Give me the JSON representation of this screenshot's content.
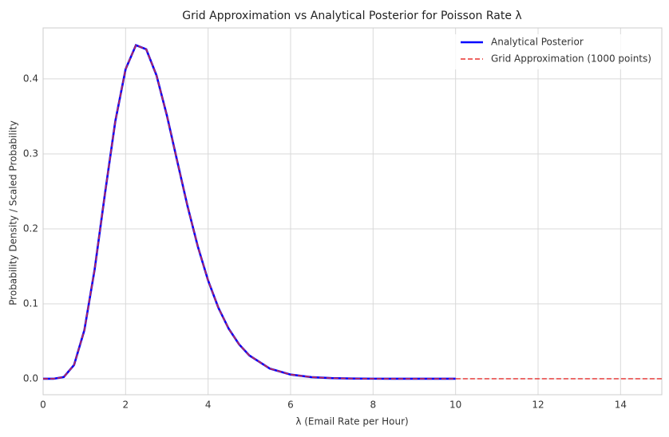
{
  "chart_data": {
    "type": "line",
    "title": "Grid Approximation vs Analytical Posterior for Poisson Rate λ",
    "xlabel": "λ (Email Rate per Hour)",
    "ylabel": "Probability Density / Scaled Probability",
    "x": [
      0,
      0.25,
      0.5,
      0.75,
      1,
      1.25,
      1.5,
      1.75,
      2,
      2.25,
      2.5,
      2.75,
      3,
      3.25,
      3.5,
      3.75,
      4,
      4.25,
      4.5,
      4.75,
      5,
      5.5,
      6,
      6.5,
      7,
      7.5,
      8,
      8.5,
      9,
      9.5,
      10,
      10.5,
      11,
      11.5,
      12,
      12.5,
      13,
      13.5,
      14,
      14.5,
      15
    ],
    "series": [
      {
        "name": "Analytical Posterior",
        "color": "#0000ff",
        "dash": false,
        "values": [
          0,
          0.0,
          0.0023,
          0.0183,
          0.0648,
          0.146,
          0.2471,
          0.3434,
          0.413,
          0.445,
          0.4395,
          0.4045,
          0.3514,
          0.2907,
          0.2306,
          0.1766,
          0.1311,
          0.0946,
          0.0667,
          0.046,
          0.0311,
          0.0135,
          0.0056,
          0.0022,
          0.0008,
          0.0003,
          0.0001,
          0,
          0,
          0,
          0,
          null,
          null,
          null,
          null,
          null,
          null,
          null,
          null,
          null,
          null
        ]
      },
      {
        "name": "Grid Approximation (1000 points)",
        "color": "#e8312f",
        "dash": true,
        "values": [
          0,
          0.0,
          0.0023,
          0.0183,
          0.0648,
          0.146,
          0.2471,
          0.3434,
          0.413,
          0.445,
          0.4395,
          0.4045,
          0.3514,
          0.2907,
          0.2306,
          0.1766,
          0.1311,
          0.0946,
          0.0667,
          0.046,
          0.0311,
          0.0135,
          0.0056,
          0.0022,
          0.0008,
          0.0003,
          0.0001,
          0,
          0,
          0,
          0,
          0,
          0,
          0,
          0,
          0,
          0,
          0,
          0,
          0,
          0
        ]
      }
    ],
    "xlim": [
      0,
      15
    ],
    "xticks": [
      0,
      2,
      4,
      6,
      8,
      10,
      12,
      14
    ],
    "ylim": [
      -0.0213,
      0.468
    ],
    "yticks": [
      0.0,
      0.1,
      0.2,
      0.3,
      0.4
    ],
    "grid": true,
    "legend": "upper right"
  }
}
